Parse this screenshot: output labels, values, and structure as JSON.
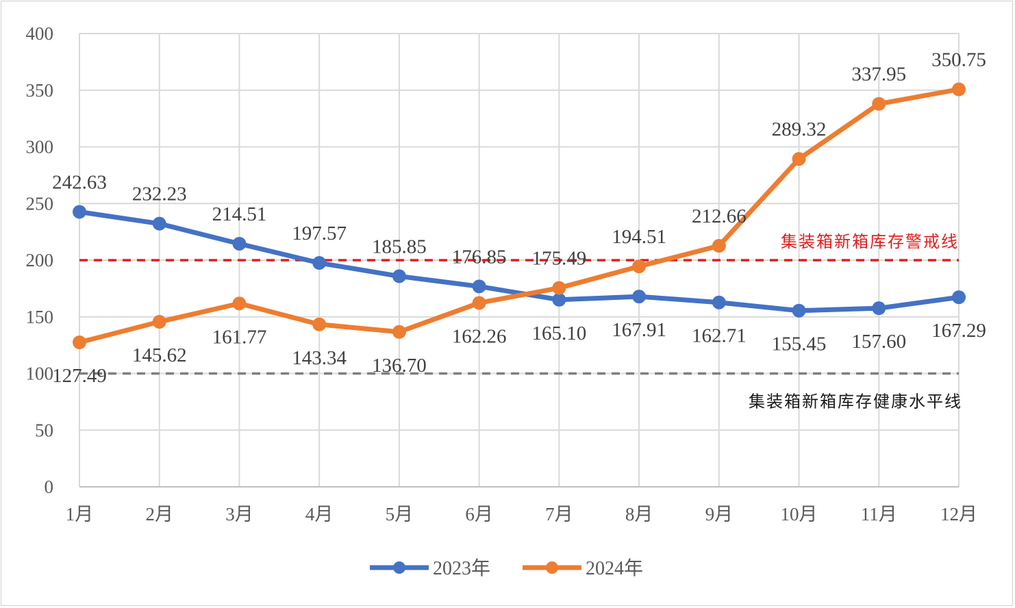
{
  "chart_data": {
    "type": "line",
    "title": "",
    "xlabel": "",
    "ylabel": "",
    "ylim": [
      0,
      400
    ],
    "yticks": [
      "0",
      "50",
      "100",
      "150",
      "200",
      "250",
      "300",
      "350",
      "400"
    ],
    "grid": true,
    "categories": [
      "1月",
      "2月",
      "3月",
      "4月",
      "5月",
      "6月",
      "7月",
      "8月",
      "9月",
      "10月",
      "11月",
      "12月"
    ],
    "series": [
      {
        "name": "2023年",
        "color": "#4472c4",
        "values": [
          242.63,
          232.23,
          214.51,
          197.57,
          185.85,
          176.85,
          165.1,
          167.91,
          162.71,
          155.45,
          157.6,
          167.29
        ],
        "labels": [
          "242.63",
          "232.23",
          "214.51",
          "197.57",
          "185.85",
          "176.85",
          "165.10",
          "167.91",
          "162.71",
          "155.45",
          "157.60",
          "167.29"
        ]
      },
      {
        "name": "2024年",
        "color": "#ed7d31",
        "values": [
          127.49,
          145.62,
          161.77,
          143.34,
          136.7,
          162.26,
          175.49,
          194.51,
          212.66,
          289.32,
          337.95,
          350.75
        ],
        "labels": [
          "127.49",
          "145.62",
          "161.77",
          "143.34",
          "136.70",
          "162.26",
          "175.49",
          "194.51",
          "212.66",
          "289.32",
          "337.95",
          "350.75"
        ]
      }
    ],
    "reference_lines": [
      {
        "name": "集装箱新箱库存警戒线",
        "value": 200,
        "color": "#e01f1f"
      },
      {
        "name": "集装箱新箱库存健康水平线",
        "value": 100,
        "color": "#7f7f7f"
      }
    ],
    "legend_position": "bottom-center"
  }
}
